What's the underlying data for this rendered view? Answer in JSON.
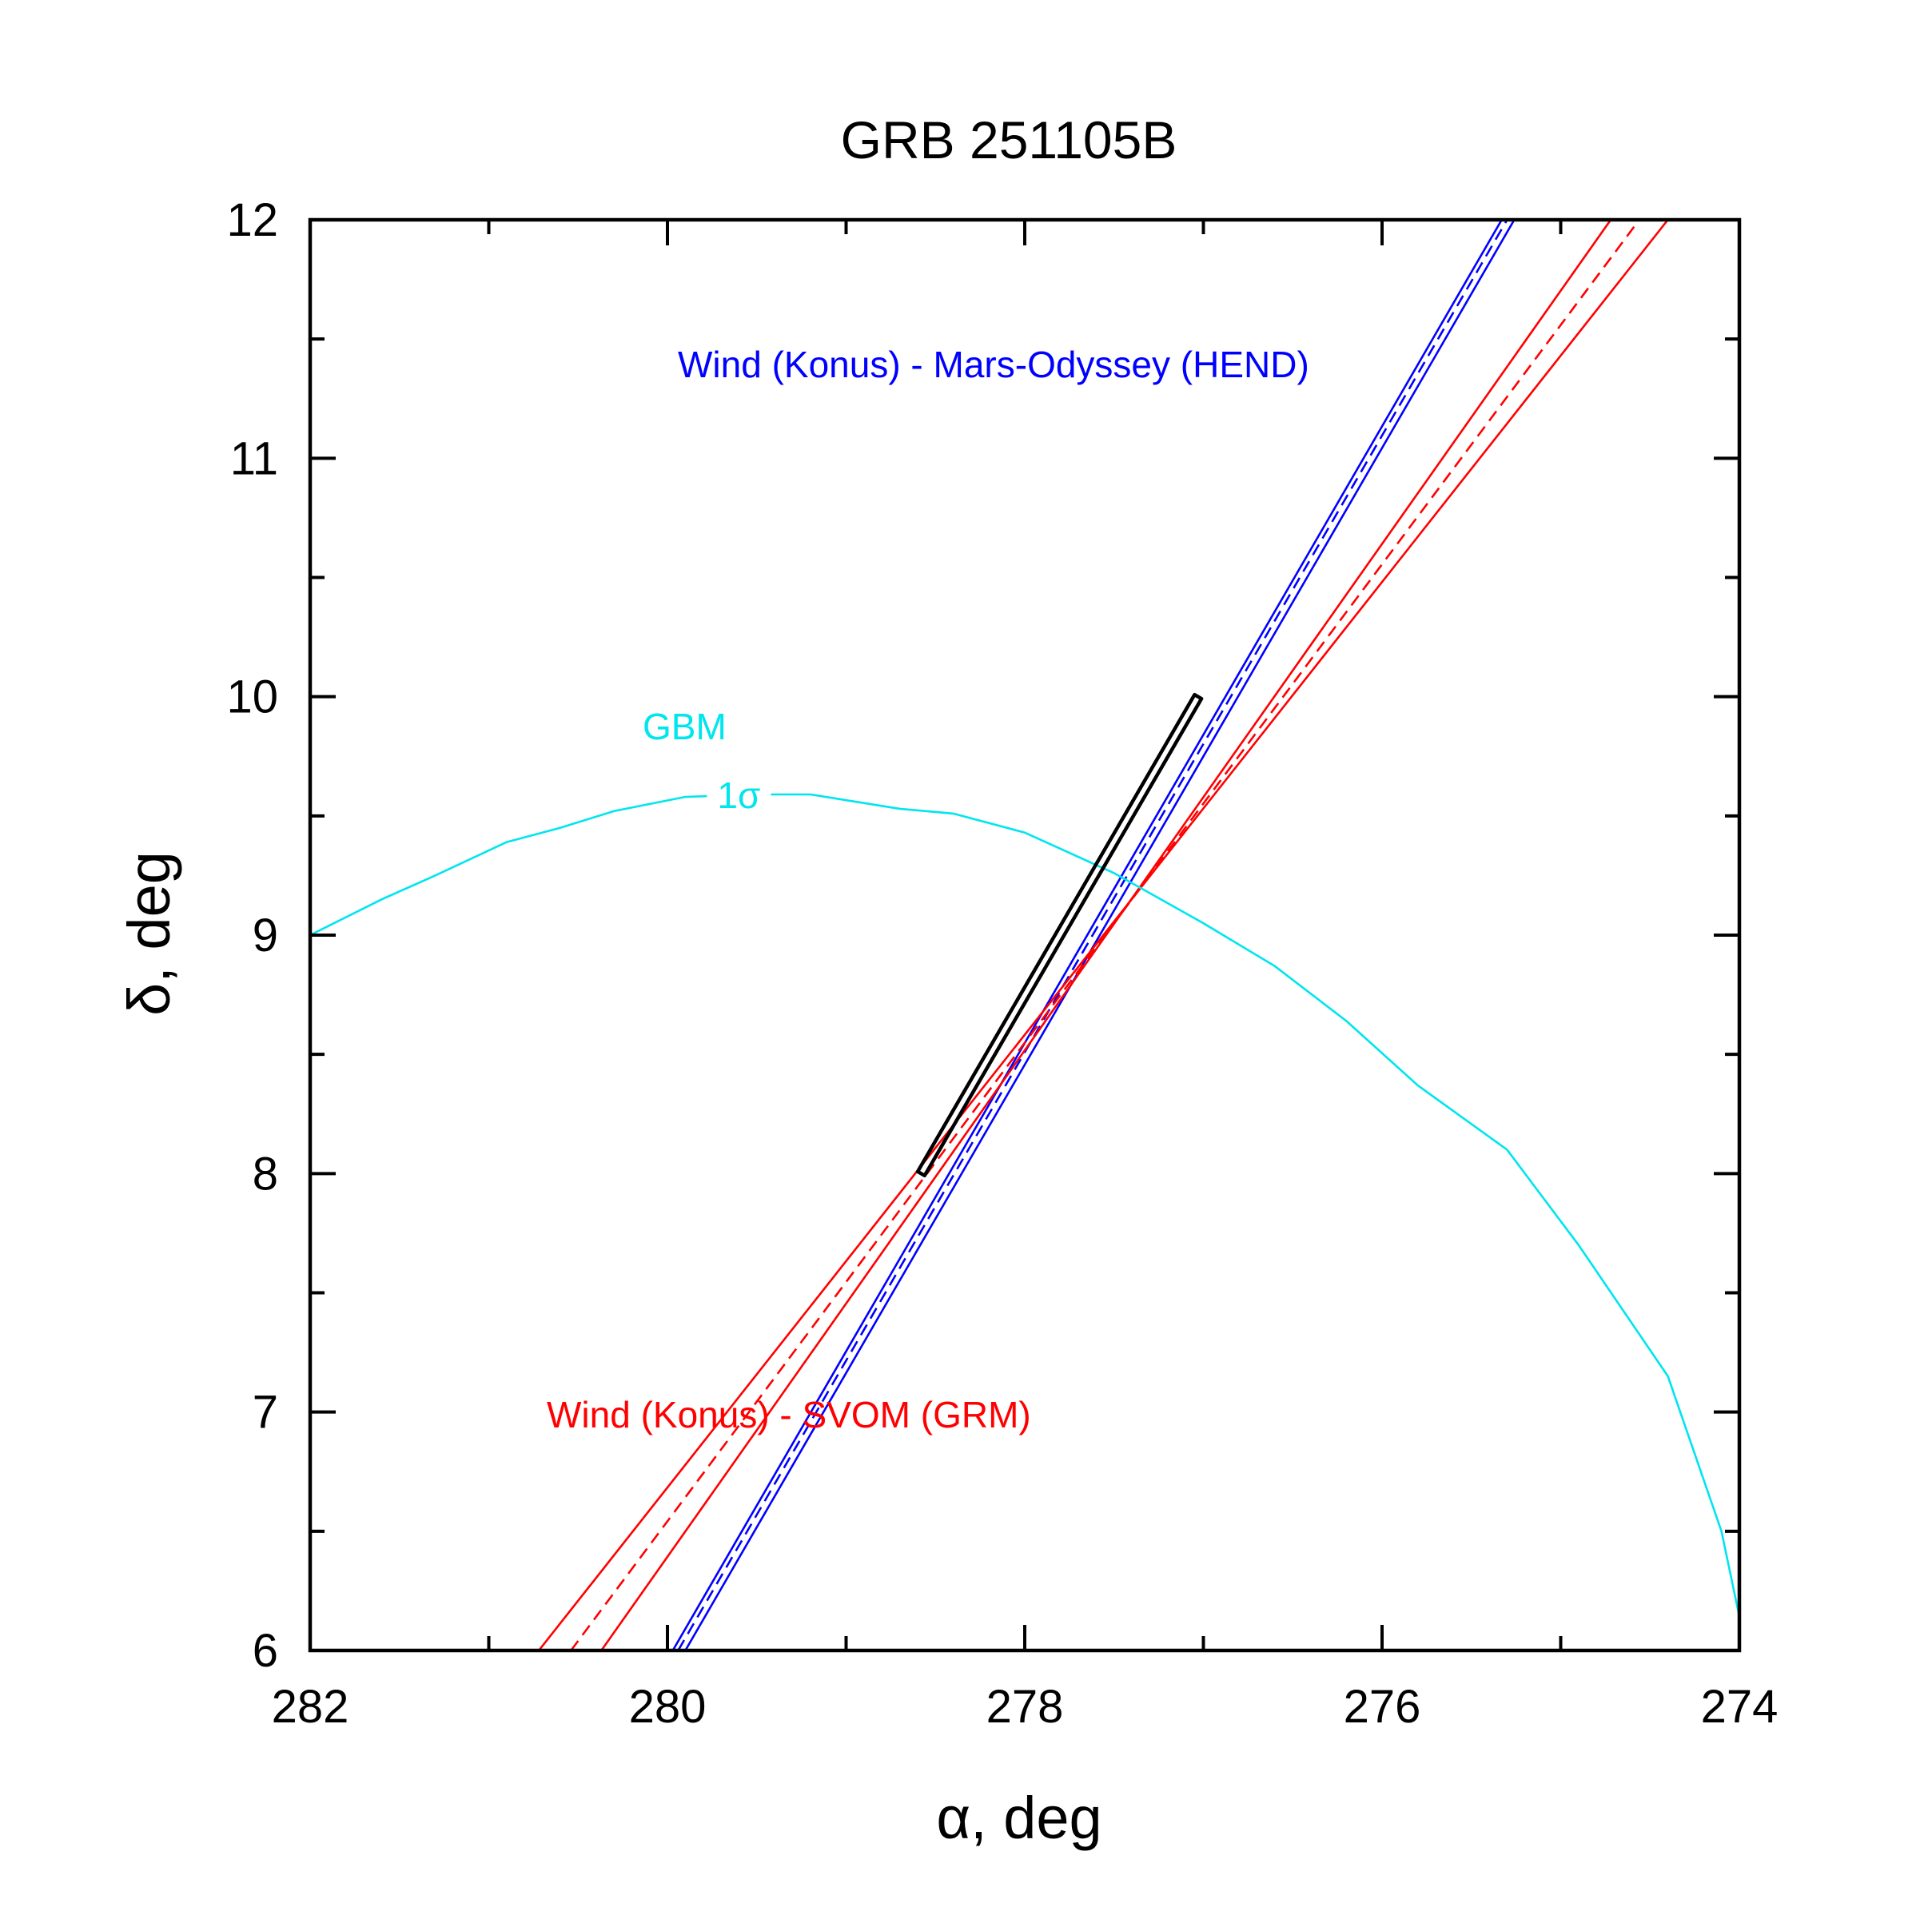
{
  "chart_data": {
    "type": "line",
    "title": "GRB 251105B",
    "xlabel": "α, deg",
    "ylabel": "δ, deg",
    "xlim": [
      282,
      274
    ],
    "ylim": [
      6,
      12
    ],
    "x_ticks": [
      282,
      280,
      278,
      276,
      274
    ],
    "y_ticks": [
      6,
      7,
      8,
      9,
      10,
      11,
      12
    ],
    "x_minor_step": 1,
    "y_minor_step": 0.5,
    "grid": false,
    "colors": {
      "wind_mars": "#0000ff",
      "wind_svom": "#ff0000",
      "gbm": "#00e5ee",
      "box": "#000000",
      "frame": "#000000"
    },
    "annotations": {
      "wind_mars_label": "Wind (Konus) - Mars-Odyssey (HEND)",
      "wind_svom_label": "Wind (Konus) - SVOM (GRM)",
      "gbm_label": "GBM",
      "gbm_sigma_label": "1σ"
    },
    "series": [
      {
        "name": "Wind (Konus) - Mars-Odyssey (HEND) upper",
        "color": "#0000ff",
        "style": "solid",
        "points": [
          [
            279.97,
            6.0
          ],
          [
            275.33,
            12.0
          ]
        ]
      },
      {
        "name": "Wind (Konus) - Mars-Odyssey (HEND) center",
        "color": "#0000ff",
        "style": "dashed",
        "points": [
          [
            279.94,
            6.0
          ],
          [
            275.3,
            12.0
          ]
        ]
      },
      {
        "name": "Wind (Konus) - Mars-Odyssey (HEND) lower",
        "color": "#0000ff",
        "style": "solid",
        "points": [
          [
            279.9,
            6.0
          ],
          [
            275.26,
            12.0
          ]
        ]
      },
      {
        "name": "Wind (Konus) - SVOM (GRM) upper",
        "color": "#ff0000",
        "style": "solid",
        "points": [
          [
            280.72,
            6.0
          ],
          [
            274.4,
            12.0
          ]
        ]
      },
      {
        "name": "Wind (Konus) - SVOM (GRM) center",
        "color": "#ff0000",
        "style": "dashed",
        "points": [
          [
            280.54,
            6.0
          ],
          [
            274.56,
            12.0
          ]
        ]
      },
      {
        "name": "Wind (Konus) - SVOM (GRM) lower",
        "color": "#ff0000",
        "style": "solid",
        "points": [
          [
            280.37,
            6.0
          ],
          [
            274.72,
            12.0
          ]
        ]
      },
      {
        "name": "GBM 1σ",
        "color": "#00e5ee",
        "style": "solid",
        "points": [
          [
            282.0,
            9.0
          ],
          [
            281.6,
            9.15
          ],
          [
            281.3,
            9.25
          ],
          [
            280.9,
            9.39
          ],
          [
            280.6,
            9.45
          ],
          [
            280.3,
            9.52
          ],
          [
            279.9,
            9.58
          ],
          [
            279.5,
            9.59
          ],
          [
            279.2,
            9.59
          ],
          [
            278.7,
            9.53
          ],
          [
            278.4,
            9.51
          ],
          [
            278.0,
            9.43
          ],
          [
            277.5,
            9.26
          ],
          [
            277.0,
            9.05
          ],
          [
            276.6,
            8.87
          ],
          [
            276.2,
            8.64
          ],
          [
            275.8,
            8.37
          ],
          [
            275.3,
            8.1
          ],
          [
            274.9,
            7.7
          ],
          [
            274.4,
            7.15
          ],
          [
            274.1,
            6.5
          ],
          [
            273.96,
            6.0
          ]
        ]
      }
    ],
    "error_box": {
      "name": "Localization box",
      "color": "#000000",
      "corners": [
        [
          278.58,
          8.0
        ],
        [
          277.03,
          10.0
        ]
      ]
    }
  }
}
